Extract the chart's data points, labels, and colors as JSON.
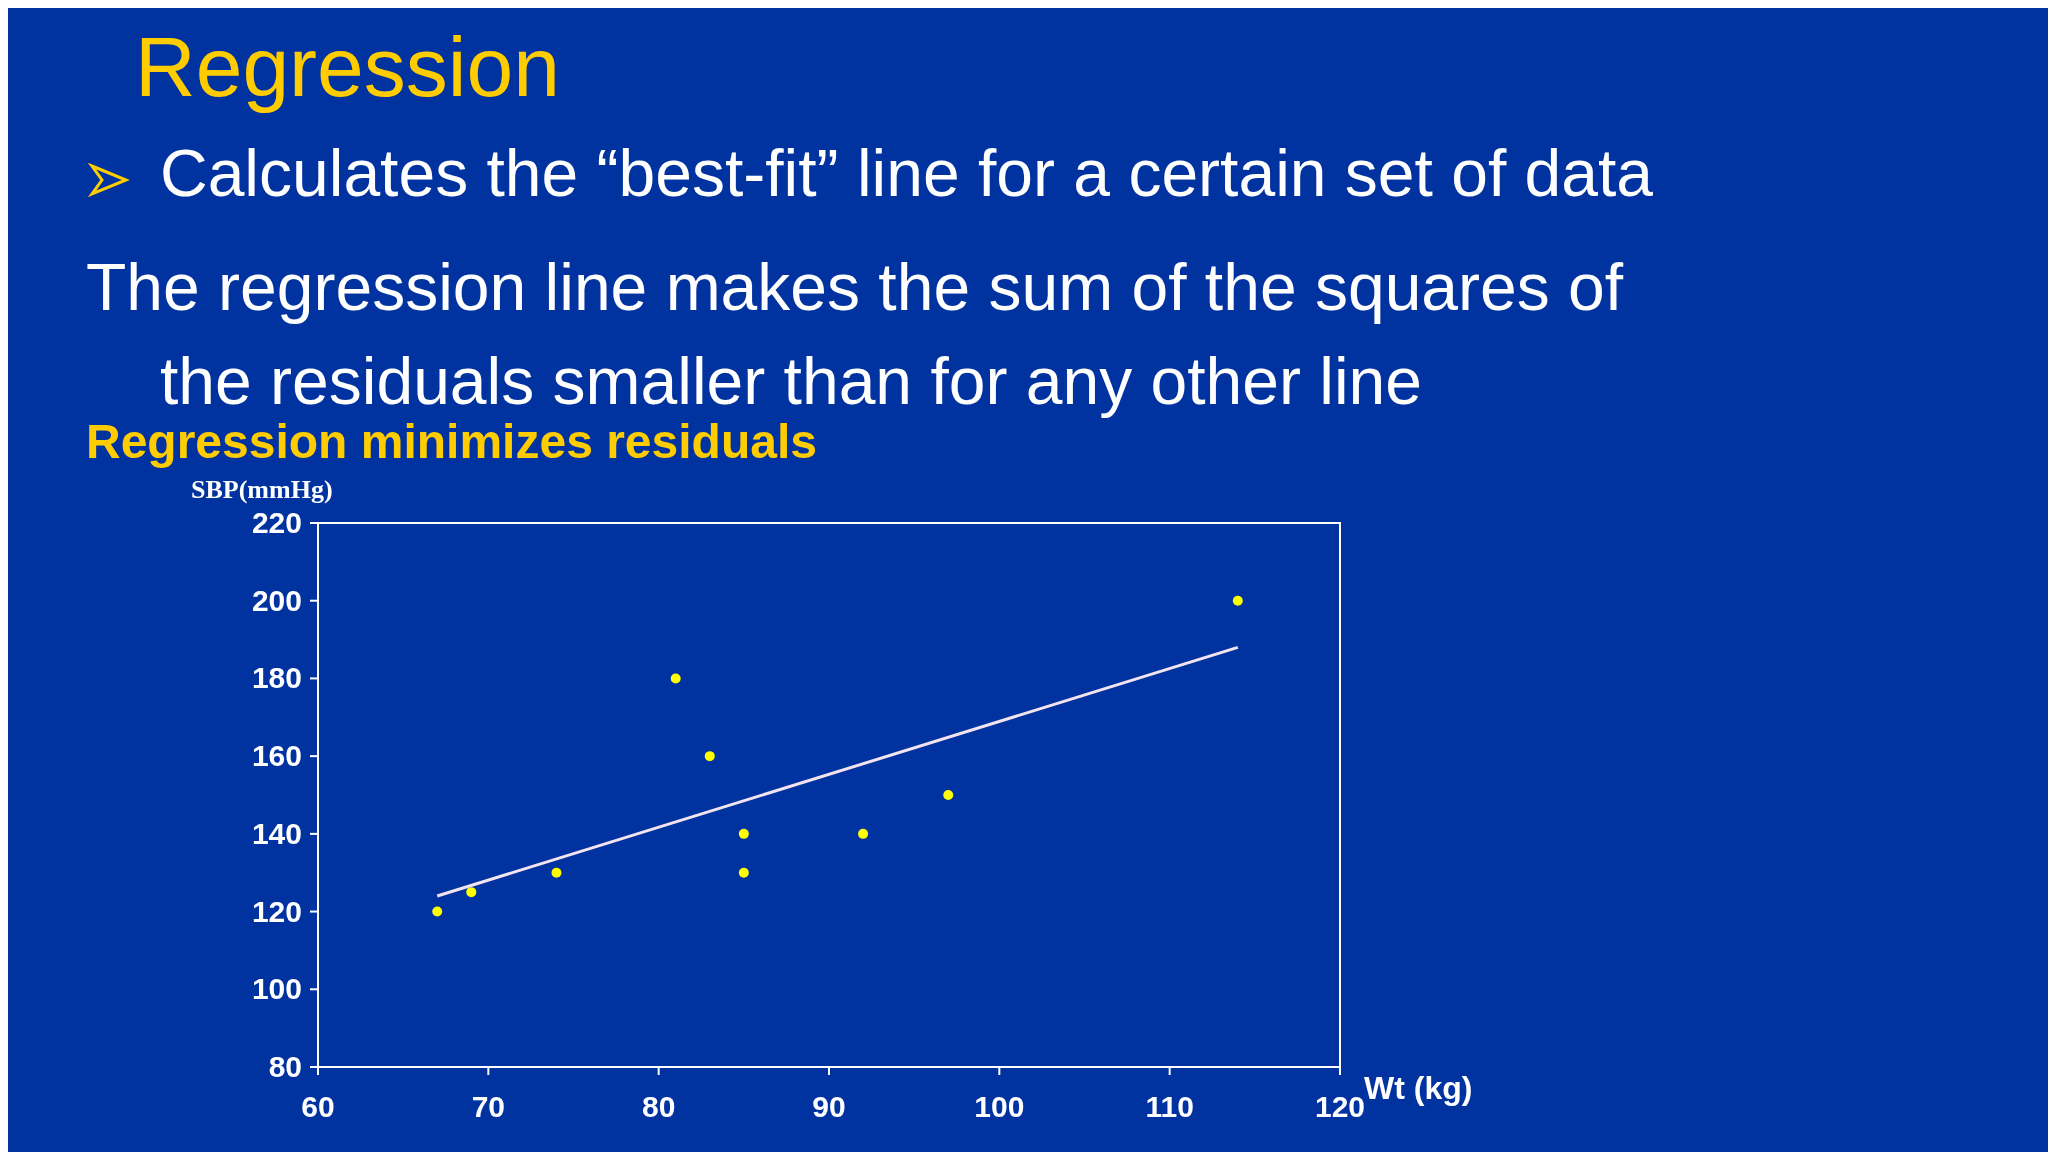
{
  "chart_data": {
    "type": "scatter",
    "title": "Regression",
    "annotations": [
      "Calculates the “best-fit” line for a certain set of data",
      "The regression line makes the sum of the squares of the residuals smaller than for any other line",
      "Regression minimizes residuals"
    ],
    "xlabel": "Wt (kg)",
    "ylabel": "SBP(mmHg)",
    "xlim": [
      60,
      120
    ],
    "xticks": [
      60,
      70,
      80,
      90,
      100,
      110,
      120
    ],
    "ylim": [
      80,
      220
    ],
    "yticks": [
      80,
      100,
      120,
      140,
      160,
      180,
      200,
      220
    ],
    "grid": false,
    "series": [
      {
        "marker": "circle",
        "color": "#ffff00",
        "x": [
          67,
          69,
          74,
          81,
          83,
          85,
          85,
          92,
          97,
          114
        ],
        "values": [
          120,
          125,
          130,
          180,
          160,
          140,
          130,
          140,
          150,
          200
        ]
      },
      {
        "type": "line",
        "color": "#f4e4f0",
        "x": [
          67,
          114
        ],
        "values": [
          124,
          188
        ]
      }
    ]
  }
}
